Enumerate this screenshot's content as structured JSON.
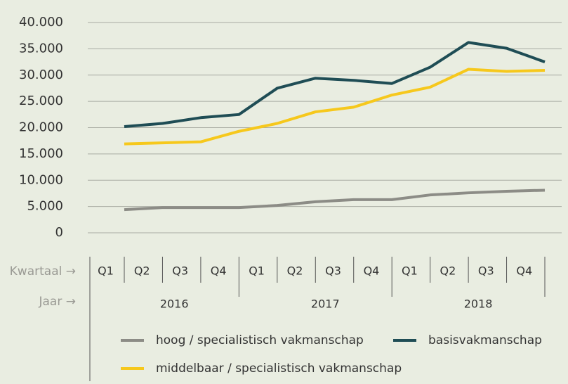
{
  "chart_data": {
    "type": "line",
    "categories": [
      "Q1",
      "Q2",
      "Q3",
      "Q4",
      "Q1",
      "Q2",
      "Q3",
      "Q4",
      "Q1",
      "Q2",
      "Q3",
      "Q4"
    ],
    "years": [
      "2016",
      "2017",
      "2018"
    ],
    "x_label": "Kwartaal →",
    "year_label": "Jaar →",
    "ylim": [
      0,
      40000
    ],
    "yticks": [
      0,
      {
        "value": 5000,
        "label": "5.000"
      },
      {
        "value": 10000,
        "label": "10.000"
      },
      {
        "value": 15000,
        "label": "15.000"
      },
      {
        "value": 20000,
        "label": "20.000"
      },
      {
        "value": 25000,
        "label": "25.000"
      },
      {
        "value": 30000,
        "label": "30.000"
      },
      {
        "value": 35000,
        "label": "35.000"
      },
      {
        "value": 40000,
        "label": "40.000"
      }
    ],
    "grid": true,
    "series": [
      {
        "name": "hoog / specialistisch vakmanschap",
        "color": "#8c8c86",
        "values": [
          4400,
          4800,
          4800,
          4800,
          5200,
          5900,
          6300,
          6300,
          7200,
          7600,
          7900,
          8100
        ]
      },
      {
        "name": "basisvakmanschap",
        "color": "#1f4d55",
        "values": [
          20200,
          20800,
          21900,
          22500,
          27500,
          29400,
          29000,
          28400,
          31500,
          36200,
          35100,
          32500
        ]
      },
      {
        "name": "middelbaar / specialistisch vakmanschap",
        "color": "#f6c81c",
        "values": [
          16900,
          17100,
          17300,
          19300,
          20800,
          23000,
          23900,
          26200,
          27700,
          31100,
          30700,
          30900
        ]
      }
    ]
  }
}
